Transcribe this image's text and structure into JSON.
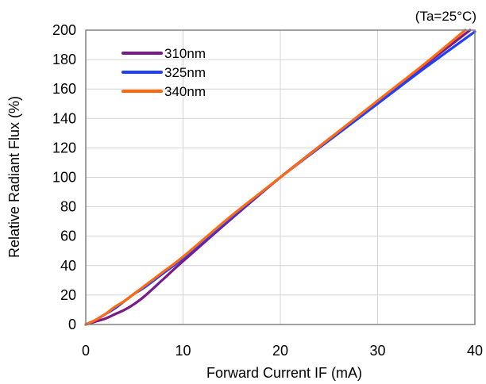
{
  "chart_data": {
    "type": "line",
    "title": "",
    "annotation": "(Ta=25°C)",
    "xlabel": "Forward Current IF (mA)",
    "ylabel": "Relative Radiant Flux (%)",
    "xlim": [
      0,
      40
    ],
    "ylim": [
      0,
      200
    ],
    "xticks": [
      0,
      10,
      20,
      30,
      40
    ],
    "yticks": [
      0,
      20,
      40,
      60,
      80,
      100,
      120,
      140,
      160,
      180,
      200
    ],
    "grid": true,
    "legend_position": "top-left",
    "series": [
      {
        "name": "310nm",
        "color": "#7a1a8a",
        "x": [
          0,
          1,
          2,
          3,
          4,
          5,
          6,
          8,
          10,
          15,
          20,
          25,
          30,
          35,
          39.5
        ],
        "y": [
          0,
          2,
          4,
          7,
          10,
          14,
          19,
          31,
          43,
          72,
          100,
          126,
          151,
          177,
          200
        ]
      },
      {
        "name": "325nm",
        "color": "#1f3fff",
        "x": [
          0,
          1,
          2,
          3,
          4,
          5,
          6,
          8,
          10,
          15,
          20,
          25,
          30,
          35,
          40
        ],
        "y": [
          0,
          3,
          7,
          11,
          16,
          21,
          25,
          35,
          45,
          73,
          100,
          125,
          150,
          175,
          199
        ]
      },
      {
        "name": "340nm",
        "color": "#ff6a10",
        "x": [
          0,
          1,
          2,
          3,
          4,
          5,
          6,
          8,
          10,
          15,
          20,
          25,
          30,
          35,
          39
        ],
        "y": [
          0,
          3,
          7,
          12,
          16,
          21,
          26,
          36,
          46,
          74,
          100,
          126,
          152,
          178,
          200
        ]
      }
    ]
  }
}
